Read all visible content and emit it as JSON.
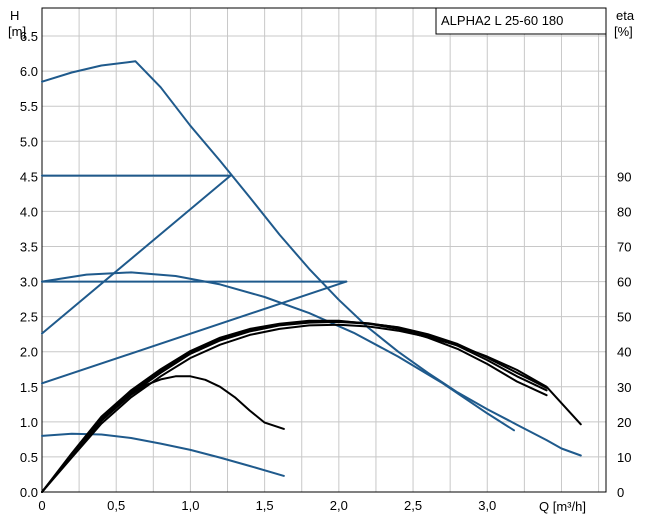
{
  "chart_data": {
    "type": "line",
    "title": "ALPHA2 L 25-60 180",
    "xlabel": "Q [m³/h]",
    "ylabel_left_line1": "H",
    "ylabel_left_line2": "[m]",
    "ylabel_right_line1": "eta",
    "ylabel_right_line2": "[%]",
    "xlim": [
      0,
      3.8
    ],
    "ylim_left": [
      0,
      6.9
    ],
    "ylim_right_visible": [
      0,
      90
    ],
    "grid": true,
    "x_ticks": [
      0,
      0.5,
      1.0,
      1.5,
      2.0,
      2.5,
      3.0
    ],
    "x_tick_labels": [
      "0",
      "0,5",
      "1,0",
      "1,5",
      "2,0",
      "2,5",
      "3,0"
    ],
    "y_left_ticks": [
      0.0,
      0.5,
      1.0,
      1.5,
      2.0,
      2.5,
      3.0,
      3.5,
      4.0,
      4.5,
      5.0,
      5.5,
      6.0,
      6.5
    ],
    "y_left_tick_labels": [
      "0.0",
      "0.5",
      "1.0",
      "1.5",
      "2.0",
      "2.5",
      "3.0",
      "3.5",
      "4.0",
      "4.5",
      "5.0",
      "5.5",
      "6.0",
      "6.5"
    ],
    "y_right_ticks": [
      0,
      10,
      20,
      30,
      40,
      50,
      60,
      70,
      80,
      90
    ],
    "y_right_tick_labels": [
      "0",
      "10",
      "20",
      "30",
      "40",
      "50",
      "60",
      "70",
      "80",
      "90"
    ],
    "colors": {
      "pump_curve": "#1f5a8c",
      "efficiency_curve": "#000000",
      "grid": "#c8c8c8"
    },
    "series": [
      {
        "kind": "pump_curve",
        "points": [
          [
            0.0,
            5.85
          ],
          [
            0.2,
            5.98
          ],
          [
            0.4,
            6.08
          ],
          [
            0.63,
            6.14
          ],
          [
            0.8,
            5.77
          ],
          [
            1.0,
            5.22
          ],
          [
            1.2,
            4.72
          ],
          [
            1.4,
            4.2
          ],
          [
            1.6,
            3.67
          ],
          [
            1.8,
            3.18
          ],
          [
            2.0,
            2.74
          ],
          [
            2.2,
            2.34
          ],
          [
            2.4,
            2.0
          ],
          [
            2.6,
            1.7
          ],
          [
            2.8,
            1.42
          ],
          [
            3.0,
            1.18
          ],
          [
            3.2,
            0.96
          ],
          [
            3.4,
            0.74
          ],
          [
            3.5,
            0.62
          ],
          [
            3.63,
            0.52
          ]
        ]
      },
      {
        "kind": "pump_curve",
        "points": [
          [
            0.0,
            4.51
          ],
          [
            1.27,
            4.51
          ]
        ]
      },
      {
        "kind": "pump_curve",
        "points": [
          [
            0.0,
            2.26
          ],
          [
            1.27,
            4.51
          ]
        ]
      },
      {
        "kind": "pump_curve",
        "points": [
          [
            0.0,
            3.0
          ],
          [
            2.05,
            3.0
          ]
        ]
      },
      {
        "kind": "pump_curve",
        "points": [
          [
            0.0,
            1.55
          ],
          [
            2.05,
            3.0
          ]
        ]
      },
      {
        "kind": "pump_curve",
        "points": [
          [
            0.0,
            3.0
          ],
          [
            0.3,
            3.1
          ],
          [
            0.6,
            3.13
          ],
          [
            0.9,
            3.08
          ],
          [
            1.2,
            2.96
          ],
          [
            1.5,
            2.78
          ],
          [
            1.8,
            2.55
          ],
          [
            2.1,
            2.27
          ],
          [
            2.4,
            1.93
          ],
          [
            2.7,
            1.55
          ],
          [
            3.0,
            1.12
          ],
          [
            3.18,
            0.88
          ]
        ]
      },
      {
        "kind": "pump_curve",
        "points": [
          [
            0.0,
            0.8
          ],
          [
            0.2,
            0.83
          ],
          [
            0.4,
            0.82
          ],
          [
            0.6,
            0.77
          ],
          [
            0.8,
            0.69
          ],
          [
            1.0,
            0.6
          ],
          [
            1.2,
            0.49
          ],
          [
            1.4,
            0.37
          ],
          [
            1.63,
            0.23
          ]
        ]
      },
      {
        "kind": "efficiency_curve",
        "points": [
          [
            0.0,
            0.0
          ],
          [
            0.1,
            5.2
          ],
          [
            0.2,
            10.8
          ],
          [
            0.3,
            15.8
          ],
          [
            0.4,
            20.3
          ],
          [
            0.5,
            24.0
          ],
          [
            0.6,
            27.7
          ],
          [
            0.7,
            30.5
          ],
          [
            0.8,
            32.1
          ],
          [
            0.9,
            33.0
          ],
          [
            1.0,
            33.0
          ],
          [
            1.1,
            32.0
          ],
          [
            1.2,
            30.0
          ],
          [
            1.3,
            27.0
          ],
          [
            1.4,
            23.2
          ],
          [
            1.5,
            19.8
          ],
          [
            1.63,
            18.0
          ]
        ]
      },
      {
        "kind": "efficiency_curve",
        "points": [
          [
            0.0,
            0.0
          ],
          [
            0.2,
            11.0
          ],
          [
            0.4,
            21.5
          ],
          [
            0.6,
            29.0
          ],
          [
            0.8,
            35.0
          ],
          [
            1.0,
            40.2
          ],
          [
            1.2,
            44.0
          ],
          [
            1.4,
            46.5
          ],
          [
            1.6,
            48.0
          ],
          [
            1.8,
            48.8
          ],
          [
            2.0,
            48.8
          ],
          [
            2.2,
            48.0
          ],
          [
            2.4,
            46.5
          ],
          [
            2.6,
            44.0
          ],
          [
            2.8,
            40.8
          ],
          [
            3.0,
            36.5
          ],
          [
            3.2,
            31.5
          ],
          [
            3.4,
            27.6
          ]
        ]
      },
      {
        "kind": "efficiency_curve",
        "points": [
          [
            0.0,
            0.0
          ],
          [
            0.2,
            10.5
          ],
          [
            0.4,
            20.8
          ],
          [
            0.6,
            28.5
          ],
          [
            0.8,
            34.5
          ],
          [
            1.0,
            39.8
          ],
          [
            1.2,
            43.6
          ],
          [
            1.4,
            46.2
          ],
          [
            1.6,
            47.8
          ],
          [
            1.8,
            48.6
          ],
          [
            2.0,
            48.7
          ],
          [
            2.2,
            48.1
          ],
          [
            2.4,
            46.9
          ],
          [
            2.6,
            44.6
          ],
          [
            2.8,
            41.7
          ],
          [
            3.0,
            37.6
          ],
          [
            3.2,
            33.0
          ],
          [
            3.4,
            29.0
          ]
        ]
      },
      {
        "kind": "efficiency_curve",
        "points": [
          [
            0.0,
            0.0
          ],
          [
            0.2,
            10.2
          ],
          [
            0.4,
            20.3
          ],
          [
            0.6,
            28.0
          ],
          [
            0.8,
            34.0
          ],
          [
            1.0,
            39.4
          ],
          [
            1.2,
            43.2
          ],
          [
            1.4,
            45.8
          ],
          [
            1.6,
            47.5
          ],
          [
            1.8,
            48.3
          ],
          [
            2.0,
            48.5
          ],
          [
            2.2,
            48.0
          ],
          [
            2.4,
            47.0
          ],
          [
            2.6,
            45.0
          ],
          [
            2.8,
            42.2
          ],
          [
            3.0,
            38.3
          ],
          [
            3.2,
            34.0
          ],
          [
            3.4,
            29.7
          ]
        ]
      },
      {
        "kind": "efficiency_curve",
        "points": [
          [
            0.0,
            0.0
          ],
          [
            0.2,
            9.8
          ],
          [
            0.4,
            19.5
          ],
          [
            0.6,
            27.0
          ],
          [
            0.8,
            33.0
          ],
          [
            1.0,
            38.2
          ],
          [
            1.2,
            42.0
          ],
          [
            1.4,
            44.8
          ],
          [
            1.6,
            46.5
          ],
          [
            1.8,
            47.5
          ],
          [
            2.0,
            47.7
          ],
          [
            2.2,
            47.2
          ],
          [
            2.4,
            46.0
          ],
          [
            2.6,
            44.2
          ],
          [
            2.8,
            41.8
          ],
          [
            3.0,
            38.6
          ],
          [
            3.2,
            34.8
          ],
          [
            3.4,
            30.0
          ],
          [
            3.63,
            19.3
          ]
        ]
      }
    ]
  }
}
